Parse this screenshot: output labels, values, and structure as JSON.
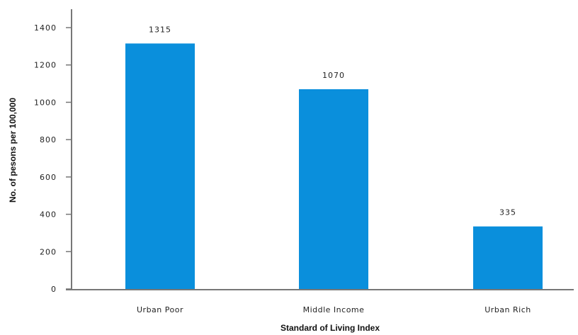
{
  "chart_data": {
    "type": "bar",
    "categories": [
      "Urban Poor",
      "Middle Income",
      "Urban Rich"
    ],
    "values": [
      1315,
      1070,
      335
    ],
    "data_labels": [
      "1315",
      "1070",
      "335"
    ],
    "title": "",
    "xlabel": "Standard of Living Index",
    "ylabel": "No. of pesons per 100,000",
    "ylim": [
      0,
      1400
    ],
    "yticks": [
      0,
      200,
      400,
      600,
      800,
      1000,
      1200,
      1400
    ],
    "ytick_labels": [
      "0",
      "200",
      "400",
      "600",
      "800",
      "1000",
      "1200",
      "1400"
    ],
    "grid": false,
    "legend": "none",
    "bar_color": "#0a8fdc",
    "axis_color": "#777777"
  }
}
